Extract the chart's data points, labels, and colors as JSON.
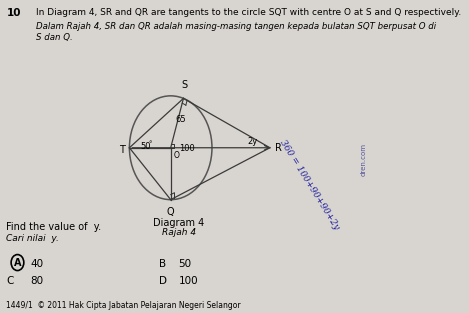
{
  "bg_color": "#d8d5d0",
  "question_number": "10",
  "question_text_en": "In Diagram 4, SR and QR are tangents to the circle SQT with centre O at S and Q respectively.",
  "question_text_ms": "Dalam Rajah 4, SR dan QR adalah masing-masing tangen kepada bulatan SQT berpusat O di\nS dan Q.",
  "diagram_label": "Diagram 4",
  "diagram_label_ms": "Rajah 4",
  "find_text_en": "Find the value of  y.",
  "find_text_ms": "Cari nilai  y.",
  "answer_A": "40",
  "answer_B": "50",
  "answer_C": "80",
  "answer_D": "100",
  "correct_answer": "A",
  "angle_label_T": "50",
  "angle_label_O": "100",
  "angle_label_S": "65",
  "angle_label_R": "2y",
  "handwritten_line1": "360 = 100+90+90+2y",
  "watermark_side": "dren.com",
  "footer_text": "1449/1  © 2011 Hak Cipta Jabatan Pelajaran Negeri Selangor"
}
